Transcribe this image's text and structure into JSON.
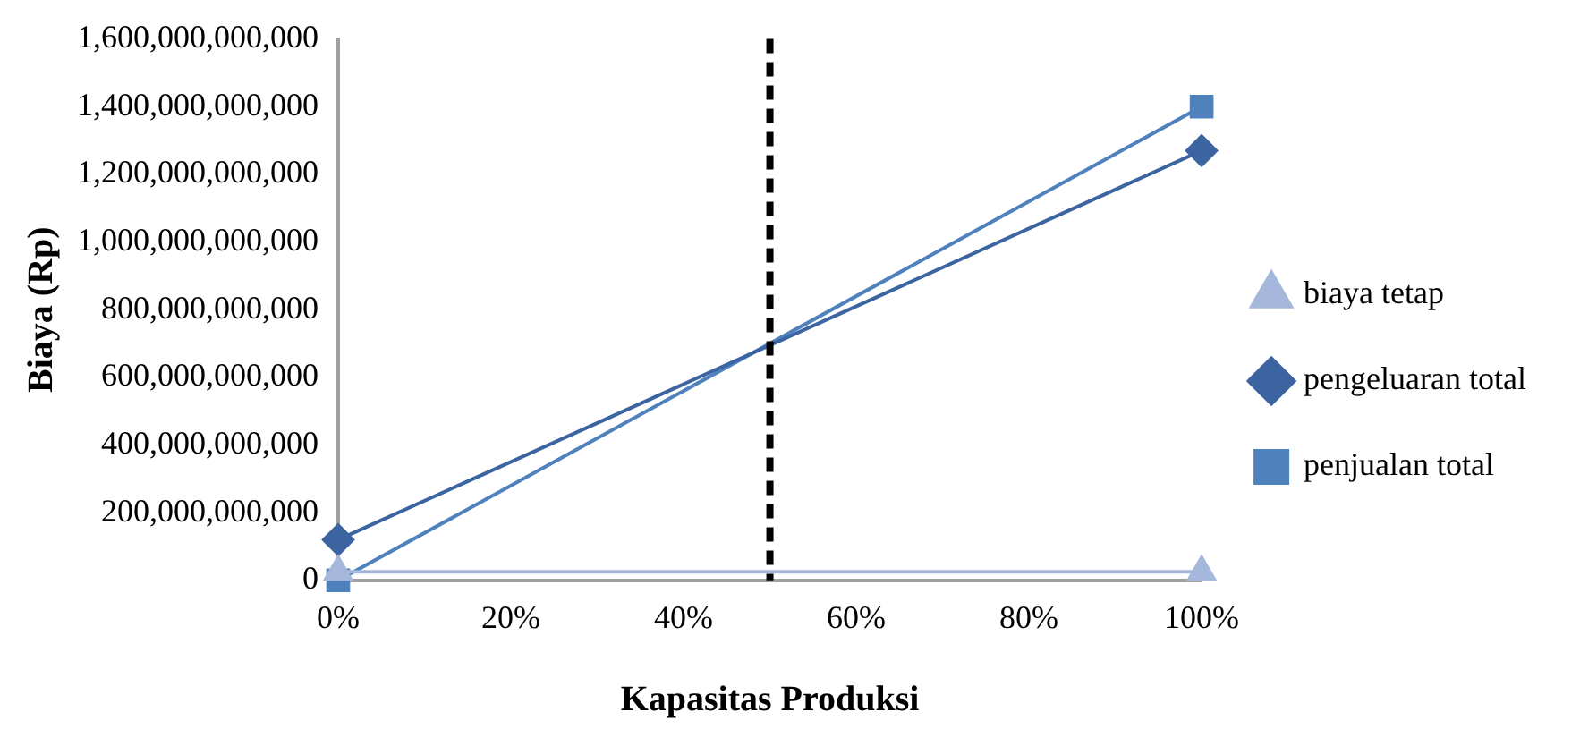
{
  "chart_data": {
    "type": "line",
    "xlabel": "Kapasitas Produksi",
    "ylabel": "Biaya (Rp)",
    "x": [
      0,
      100
    ],
    "series": [
      {
        "name": "biaya tetap",
        "color": "#a5b8dc",
        "values": [
          25000000000,
          25000000000
        ],
        "marker": "triangle"
      },
      {
        "name": "pengeluaran total",
        "color": "#3c64a0",
        "values": [
          120000000000,
          1270000000000
        ],
        "marker": "diamond"
      },
      {
        "name": "penjualan total",
        "color": "#4f81bd",
        "values": [
          0,
          1400000000000
        ],
        "marker": "square"
      }
    ],
    "xlim": [
      0,
      100
    ],
    "xticks": [
      {
        "value": 0,
        "label": "0%"
      },
      {
        "value": 20,
        "label": "20%"
      },
      {
        "value": 40,
        "label": "40%"
      },
      {
        "value": 60,
        "label": "60%"
      },
      {
        "value": 80,
        "label": "80%"
      },
      {
        "value": 100,
        "label": "100%"
      }
    ],
    "ylim": [
      0,
      1600000000000
    ],
    "yticks": [
      {
        "value": 0,
        "label": "0"
      },
      {
        "value": 200000000000,
        "label": "200,000,000,000"
      },
      {
        "value": 400000000000,
        "label": "400,000,000,000"
      },
      {
        "value": 600000000000,
        "label": "600,000,000,000"
      },
      {
        "value": 800000000000,
        "label": "800,000,000,000"
      },
      {
        "value": 1000000000000,
        "label": "1,000,000,000,000"
      },
      {
        "value": 1200000000000,
        "label": "1,200,000,000,000"
      },
      {
        "value": 1400000000000,
        "label": "1,400,000,000,000"
      },
      {
        "value": 1600000000000,
        "label": "1,600,000,000,000"
      }
    ],
    "ref_lines": [
      {
        "axis": "x",
        "value": 50,
        "color": "#000000",
        "line_style": "dashed"
      }
    ],
    "grid": false,
    "legend": "right",
    "line_style": "solid"
  }
}
